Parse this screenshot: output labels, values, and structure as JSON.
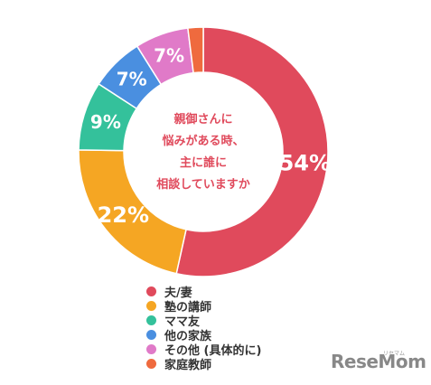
{
  "center_text": [
    "親御さんに",
    "悩みがある時、",
    "主に誰に",
    "相談していますか"
  ],
  "chart_data": {
    "type": "pie",
    "title": "",
    "categories": [
      "夫/妻",
      "塾の講師",
      "ママ友",
      "他の家族",
      "その他 (具体的に)",
      "家庭教師"
    ],
    "values": [
      54,
      22,
      9,
      7,
      7,
      2
    ],
    "value_labels": [
      "54%",
      "22%",
      "9%",
      "7%",
      "7%",
      "2%"
    ],
    "colors": [
      "#e04a5c",
      "#f5a623",
      "#34c19b",
      "#4a8fe0",
      "#e07ac8",
      "#ef6a3e"
    ],
    "start_angle_deg": 0,
    "direction": "clockwise",
    "donut": true,
    "legend_position": "bottom"
  },
  "watermark": {
    "brand": "ReseMom",
    "tagline": "リセマム"
  }
}
